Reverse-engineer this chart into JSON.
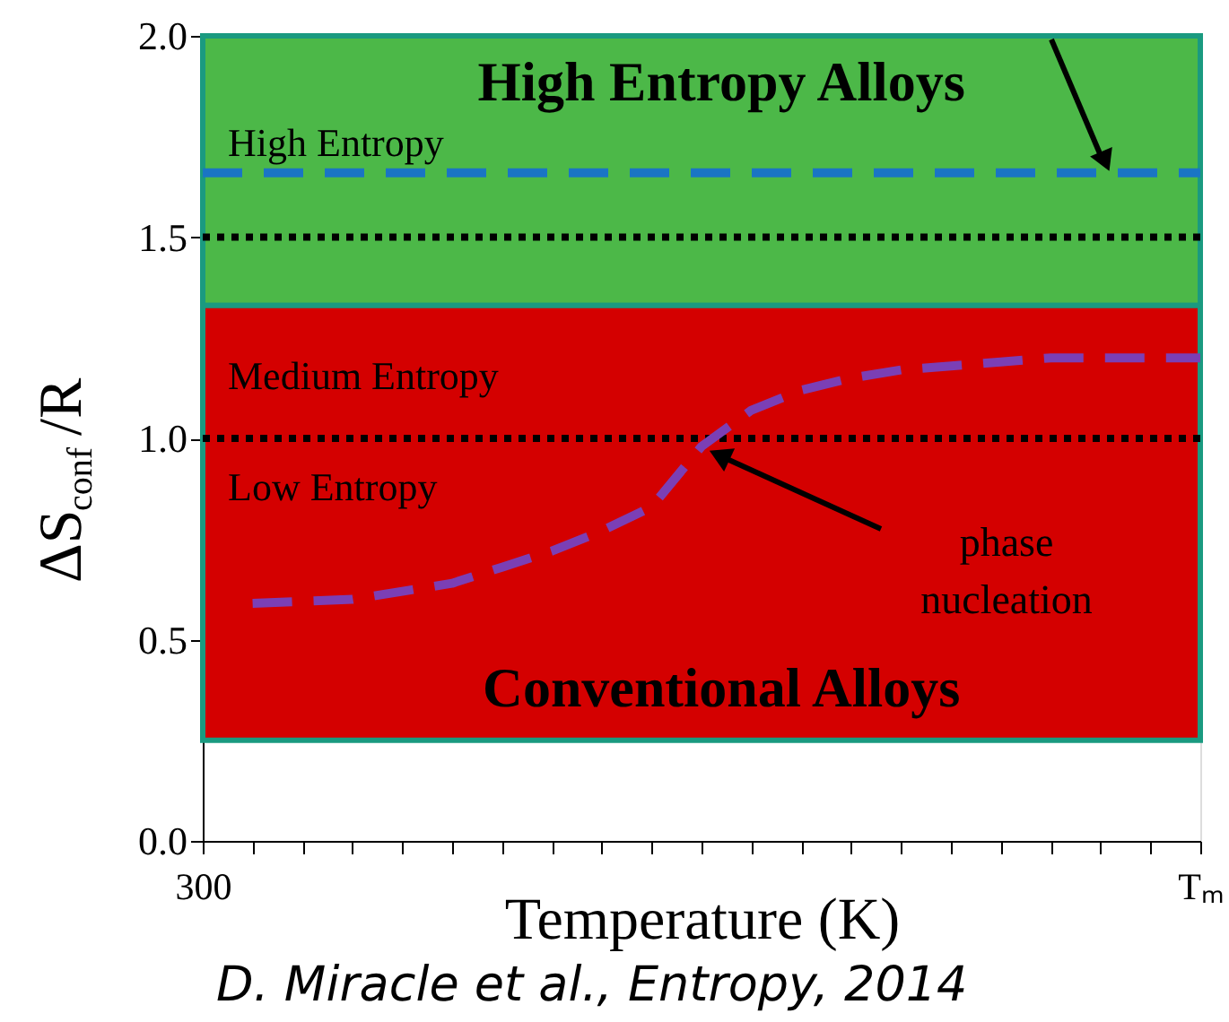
{
  "chart_data": {
    "type": "line",
    "xlabel": "Temperature (K)",
    "ylabel": "ΔS$_{conf}$/R",
    "categories": [
      "300",
      null,
      null,
      null,
      null,
      null,
      null,
      null,
      null,
      null,
      null,
      null,
      null,
      null,
      null,
      null,
      null,
      null,
      null,
      null,
      "Tₘ"
    ],
    "ylim": [
      0,
      2.0
    ],
    "yticks": [
      {
        "value": 0,
        "label": "0.0"
      },
      {
        "value": 0.5,
        "label": "0.5"
      },
      {
        "value": 1.0,
        "label": "1.0"
      },
      {
        "value": 1.5,
        "label": "1.5"
      },
      {
        "value": 2.0,
        "label": "2.0"
      }
    ],
    "bands": [
      {
        "axis": "y",
        "from": 1.33,
        "to": 2.0,
        "label": "High Entropy Alloys",
        "color": "#4cb848"
      },
      {
        "axis": "y",
        "from": 0.25,
        "to": 1.33,
        "label": "Conventional Alloys",
        "color": "#d40000"
      }
    ],
    "ref_lines": [
      {
        "axis": "y",
        "value": 1.66,
        "color": "#1a75c4",
        "line_style": "dashed"
      },
      {
        "axis": "y",
        "value": 1.5,
        "color": "#000000",
        "line_style": "dotted"
      },
      {
        "axis": "y",
        "value": 1.0,
        "color": "#000000",
        "line_style": "dotted"
      }
    ],
    "series": [
      {
        "color": "#7b3fb5",
        "line_style": "dashed",
        "values": [
          null,
          0.59,
          0.595,
          0.6,
          0.62,
          0.64,
          0.68,
          0.72,
          0.77,
          0.83,
          0.98,
          1.07,
          1.12,
          1.15,
          1.17,
          1.18,
          1.19,
          1.2,
          1.2,
          1.2,
          1.2
        ]
      }
    ],
    "annotations": [
      "High Entropy",
      "Medium Entropy",
      "Low Entropy",
      {
        "text": "phase nucleation",
        "y": 0.98
      },
      "D. Miracle et al., Entropy, 2014"
    ],
    "grid": false
  }
}
